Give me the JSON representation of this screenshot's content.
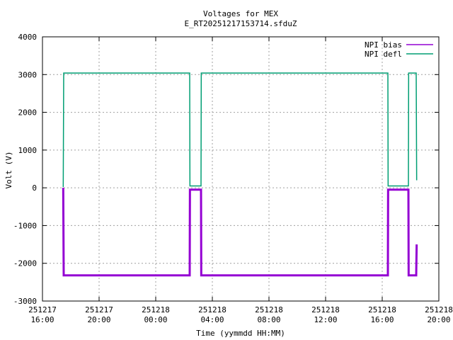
{
  "chart_data": {
    "type": "line",
    "title": "Voltages for MEX",
    "subtitle": "E_RT20251217153714.sfduZ",
    "x_label": "Time (yymmdd HH:MM)",
    "y_label": "Volt (V)",
    "x": [
      "251217 17:28",
      "251217 17:30",
      "251218 02:24",
      "251218 02:25",
      "251218 03:12",
      "251218 03:13",
      "251218 16:24",
      "251218 16:25",
      "251218 17:51",
      "251218 17:52",
      "251218 18:24",
      "251218 18:26"
    ],
    "series": [
      {
        "name": "NPI bias",
        "color": "#9400d3",
        "values": [
          0,
          -2320,
          -2320,
          -50,
          -50,
          -2320,
          -2320,
          -50,
          -50,
          -2320,
          -2320,
          -1500
        ]
      },
      {
        "name": "NPI defl",
        "color": "#009e73",
        "values": [
          20,
          3040,
          3040,
          50,
          50,
          3040,
          3040,
          50,
          50,
          3040,
          3040,
          200
        ]
      }
    ],
    "xlim": [
      "251217 16:00",
      "251218 20:00"
    ],
    "xticks": [
      "251217 16:00",
      "251217 20:00",
      "251218 00:00",
      "251218 04:00",
      "251218 08:00",
      "251218 12:00",
      "251218 16:00",
      "251218 20:00"
    ],
    "ylim": [
      -3000,
      4000
    ],
    "yticks": [
      -3000,
      -2000,
      -1000,
      0,
      1000,
      2000,
      3000,
      4000
    ],
    "grid": true,
    "legend": "top-right"
  }
}
